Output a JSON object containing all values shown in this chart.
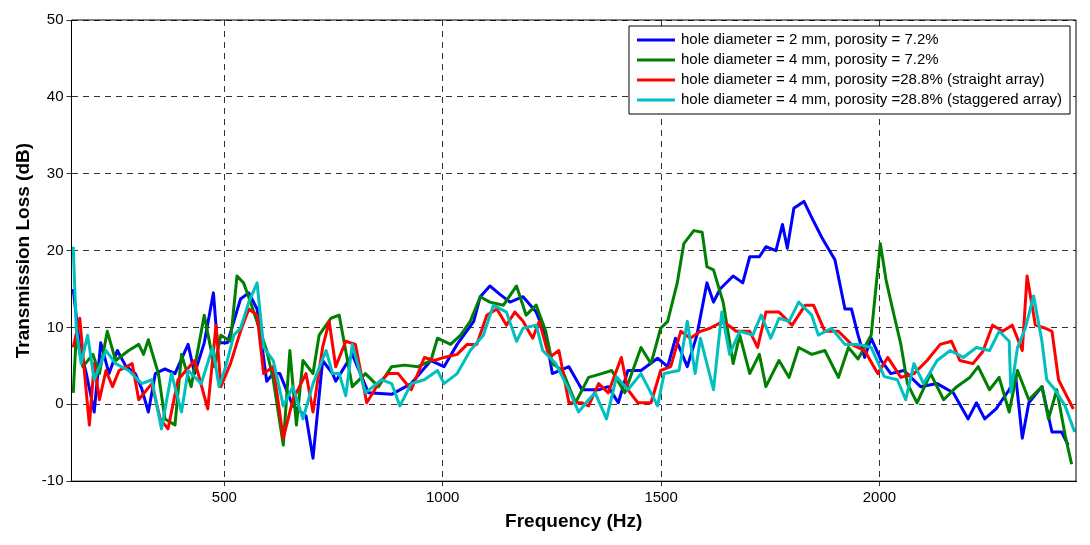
{
  "chart_data": {
    "type": "line",
    "xlabel": "Frequency (Hz)",
    "ylabel": "Transmission Loss (dB)",
    "xlim": [
      150,
      2450
    ],
    "ylim": [
      -10,
      50
    ],
    "xticks": [
      500,
      1000,
      1500,
      2000
    ],
    "yticks": [
      -10,
      0,
      10,
      20,
      30,
      40,
      50
    ],
    "grid": true,
    "legend": "top right",
    "marker": "none",
    "line_style": "solid",
    "series": [
      {
        "name": "hole diameter = 2 mm, porosity = 7.2%",
        "color": "#0000ff",
        "x": [
          154,
          169,
          184,
          202,
          217,
          236,
          255,
          274,
          296,
          311,
          326,
          342,
          364,
          387,
          417,
          432,
          454,
          475,
          484,
          507,
          537,
          556,
          575,
          597,
          612,
          627,
          657,
          687,
          703,
          725,
          748,
          755,
          793,
          830,
          883,
          928,
          973,
          1003,
          1033,
          1071,
          1086,
          1108,
          1131,
          1154,
          1184,
          1214,
          1236,
          1251,
          1289,
          1319,
          1357,
          1379,
          1402,
          1424,
          1454,
          1492,
          1515,
          1533,
          1560,
          1582,
          1605,
          1620,
          1635,
          1665,
          1687,
          1703,
          1725,
          1740,
          1763,
          1778,
          1789,
          1804,
          1827,
          1845,
          1868,
          1898,
          1921,
          1936,
          1951,
          1966,
          1981,
          2004,
          2026,
          2056,
          2094,
          2132,
          2169,
          2203,
          2222,
          2241,
          2267,
          2297,
          2312,
          2327,
          2342,
          2372,
          2395,
          2417,
          2432
        ],
        "values": [
          15,
          7.4,
          4,
          -1,
          8,
          4,
          7,
          5,
          4,
          2,
          -1,
          4,
          4.6,
          4,
          7.8,
          4,
          8,
          14.5,
          8,
          8,
          13.7,
          14.5,
          12.4,
          3,
          4,
          4,
          -0.2,
          -1.5,
          -7,
          5.7,
          4,
          3,
          6.5,
          1.5,
          1.3,
          2.7,
          5.7,
          4.9,
          7.8,
          10.8,
          14,
          15.4,
          14.3,
          13.3,
          14,
          12,
          9,
          4,
          4.9,
          1.9,
          1.9,
          2.3,
          0.2,
          4.4,
          4.4,
          6,
          4.9,
          8.6,
          4.9,
          9,
          15.8,
          13.3,
          15,
          16.7,
          15.8,
          19.2,
          19.2,
          20.5,
          20,
          23.4,
          20.3,
          25.5,
          26.4,
          24.3,
          21.7,
          18.8,
          12.4,
          12.4,
          9,
          6.1,
          8.6,
          5.7,
          4,
          4.4,
          2.3,
          2.7,
          1.5,
          -1.9,
          0.2,
          -1.9,
          -0.6,
          1.9,
          3.6,
          -4.4,
          0.2,
          2.3,
          -3.6,
          -3.6,
          -5.3
        ]
      },
      {
        "name": "hole diameter = 4 mm, porosity = 7.2%",
        "color": "#008000",
        "x": [
          154,
          161,
          176,
          199,
          214,
          232,
          251,
          281,
          304,
          315,
          326,
          349,
          364,
          387,
          402,
          424,
          454,
          477,
          492,
          514,
          529,
          544,
          560,
          582,
          597,
          612,
          635,
          650,
          665,
          680,
          703,
          717,
          744,
          763,
          793,
          823,
          853,
          883,
          913,
          943,
          973,
          988,
          1018,
          1041,
          1063,
          1086,
          1108,
          1139,
          1169,
          1191,
          1214,
          1236,
          1251,
          1274,
          1304,
          1334,
          1364,
          1387,
          1417,
          1454,
          1477,
          1499,
          1515,
          1537,
          1552,
          1575,
          1594,
          1605,
          1620,
          1642,
          1665,
          1680,
          1703,
          1725,
          1740,
          1770,
          1793,
          1815,
          1845,
          1875,
          1906,
          1929,
          1951,
          1981,
          1996,
          2002,
          2015,
          2030,
          2049,
          2064,
          2086,
          2117,
          2147,
          2177,
          2207,
          2226,
          2252,
          2274,
          2297,
          2316,
          2342,
          2372,
          2387,
          2406,
          2425,
          2440
        ],
        "values": [
          1.5,
          9,
          4.9,
          6.5,
          4,
          9.5,
          5.7,
          7,
          7.8,
          6.5,
          8.4,
          4,
          -1.9,
          -2.7,
          6.5,
          2.3,
          11.6,
          4.9,
          9,
          8.2,
          16.7,
          15.8,
          13.3,
          9.5,
          7,
          3.2,
          -5.3,
          7,
          -2.7,
          5.7,
          4,
          9,
          11.2,
          11.6,
          2.3,
          4,
          2.3,
          4.9,
          5.1,
          4.9,
          5.7,
          8.6,
          7.8,
          9,
          10.8,
          14,
          13.3,
          12.9,
          15.4,
          11.6,
          12.9,
          9.5,
          5.3,
          4.4,
          0.2,
          3.5,
          4,
          4.4,
          1.5,
          7.4,
          5.3,
          9.9,
          10.8,
          15.8,
          20.9,
          22.6,
          22.4,
          17.9,
          17.5,
          13.3,
          5.3,
          9,
          4,
          6.5,
          2.3,
          5.7,
          3.5,
          7.4,
          6.5,
          7,
          3.5,
          7.4,
          5.9,
          9,
          17.5,
          20.9,
          16.2,
          12.4,
          7.8,
          2.7,
          0.2,
          4,
          0.6,
          2.3,
          3.5,
          4.9,
          1.9,
          3.5,
          -1,
          4.4,
          0.6,
          2.3,
          -1.9,
          1.9,
          -4,
          -7.8
        ]
      },
      {
        "name": "hole diameter = 4 mm, porosity =28.8% (straight array)",
        "color": "#ff0000",
        "x": [
          154,
          169,
          180,
          191,
          202,
          214,
          229,
          244,
          259,
          289,
          304,
          334,
          353,
          371,
          394,
          432,
          462,
          481,
          492,
          514,
          537,
          556,
          575,
          590,
          612,
          635,
          657,
          672,
          687,
          703,
          725,
          740,
          755,
          778,
          800,
          826,
          853,
          875,
          898,
          928,
          958,
          981,
          1003,
          1033,
          1056,
          1078,
          1101,
          1124,
          1146,
          1165,
          1184,
          1206,
          1221,
          1244,
          1266,
          1289,
          1319,
          1334,
          1357,
          1379,
          1409,
          1424,
          1447,
          1477,
          1499,
          1522,
          1545,
          1567,
          1590,
          1612,
          1642,
          1672,
          1703,
          1721,
          1740,
          1770,
          1800,
          1830,
          1849,
          1875,
          1906,
          1936,
          1966,
          1996,
          2019,
          2049,
          2079,
          2109,
          2139,
          2165,
          2184,
          2214,
          2237,
          2259,
          2282,
          2304,
          2327,
          2338,
          2357,
          2380,
          2395,
          2410,
          2425,
          2444
        ],
        "values": [
          7.4,
          11.2,
          4,
          -2.7,
          5.3,
          0.6,
          4.4,
          2.3,
          4.4,
          5.3,
          0.6,
          2.7,
          -1.9,
          -3.2,
          3.2,
          5.7,
          -0.6,
          10.3,
          2.3,
          5.3,
          9.5,
          12.4,
          11.6,
          4,
          4.9,
          -4.4,
          0.6,
          2.3,
          4,
          -1,
          7.4,
          10.8,
          4.9,
          8.2,
          7.8,
          0.2,
          2.7,
          4,
          4,
          1.9,
          6.1,
          5.7,
          6.1,
          6.5,
          7.8,
          7.8,
          11.6,
          12.4,
          10.3,
          12,
          10.8,
          8.6,
          10.8,
          6.1,
          7,
          0.2,
          0.2,
          -0.2,
          2.7,
          1.5,
          6.1,
          1.9,
          0.2,
          0.2,
          4.4,
          4.9,
          9.5,
          8.6,
          9.5,
          9.9,
          10.8,
          9.5,
          9.5,
          7.4,
          12,
          12,
          10.3,
          12.9,
          12.9,
          9.5,
          9.5,
          7.8,
          7,
          4,
          6.1,
          3.5,
          4,
          5.7,
          7.8,
          8.2,
          5.7,
          5.3,
          6.9,
          10.3,
          9.5,
          10.3,
          7,
          16.7,
          10.3,
          9.9,
          9.5,
          3.2,
          1.5,
          -0.6
        ]
      },
      {
        "name": "hole diameter = 4 mm, porosity =28.8% (staggered array)",
        "color": "#00bfbf",
        "x": [
          154,
          161,
          172,
          187,
          202,
          229,
          251,
          281,
          311,
          334,
          356,
          379,
          402,
          417,
          447,
          473,
          488,
          503,
          522,
          537,
          556,
          575,
          590,
          612,
          635,
          657,
          680,
          703,
          733,
          748,
          763,
          778,
          793,
          823,
          860,
          883,
          902,
          928,
          958,
          988,
          1003,
          1033,
          1063,
          1093,
          1116,
          1146,
          1169,
          1184,
          1214,
          1229,
          1259,
          1289,
          1311,
          1334,
          1349,
          1375,
          1398,
          1424,
          1454,
          1492,
          1507,
          1541,
          1560,
          1578,
          1590,
          1620,
          1639,
          1657,
          1680,
          1710,
          1729,
          1751,
          1770,
          1793,
          1815,
          1845,
          1860,
          1890,
          1921,
          1951,
          1981,
          2011,
          2041,
          2060,
          2079,
          2101,
          2132,
          2162,
          2192,
          2222,
          2252,
          2274,
          2297,
          2301,
          2316,
          2334,
          2353,
          2372,
          2383,
          2402,
          2425,
          2447
        ],
        "values": [
          20.5,
          9.9,
          5.3,
          9,
          3.2,
          7,
          5.3,
          4.4,
          2.7,
          3.2,
          -3.2,
          4,
          -1,
          4.4,
          2.7,
          7.4,
          2.3,
          4.9,
          9,
          9.9,
          13.3,
          15.8,
          7.4,
          5.7,
          -0.2,
          2.3,
          -1.9,
          2.7,
          7,
          4,
          4,
          1.1,
          7.8,
          1.5,
          3.2,
          2.7,
          -0.2,
          2.7,
          3.2,
          4.4,
          2.7,
          4,
          7,
          9,
          12.9,
          12,
          8.2,
          9.9,
          10.3,
          7,
          5.3,
          1.9,
          -1,
          0.6,
          1.5,
          -1.9,
          3.6,
          1.9,
          4,
          -0.2,
          4,
          4.4,
          10.8,
          4,
          8.6,
          1.9,
          12,
          6.5,
          9.5,
          9,
          11.6,
          8.6,
          11.2,
          10.8,
          13.3,
          11.6,
          9,
          9.9,
          7.8,
          7.8,
          7.4,
          3.6,
          3.2,
          0.6,
          5.3,
          2.7,
          5.7,
          7,
          6.1,
          7.4,
          7,
          9.5,
          8.2,
          1.5,
          7.4,
          9.9,
          14.1,
          8.2,
          3.2,
          1.9,
          -0.2,
          -3.6
        ]
      }
    ]
  }
}
